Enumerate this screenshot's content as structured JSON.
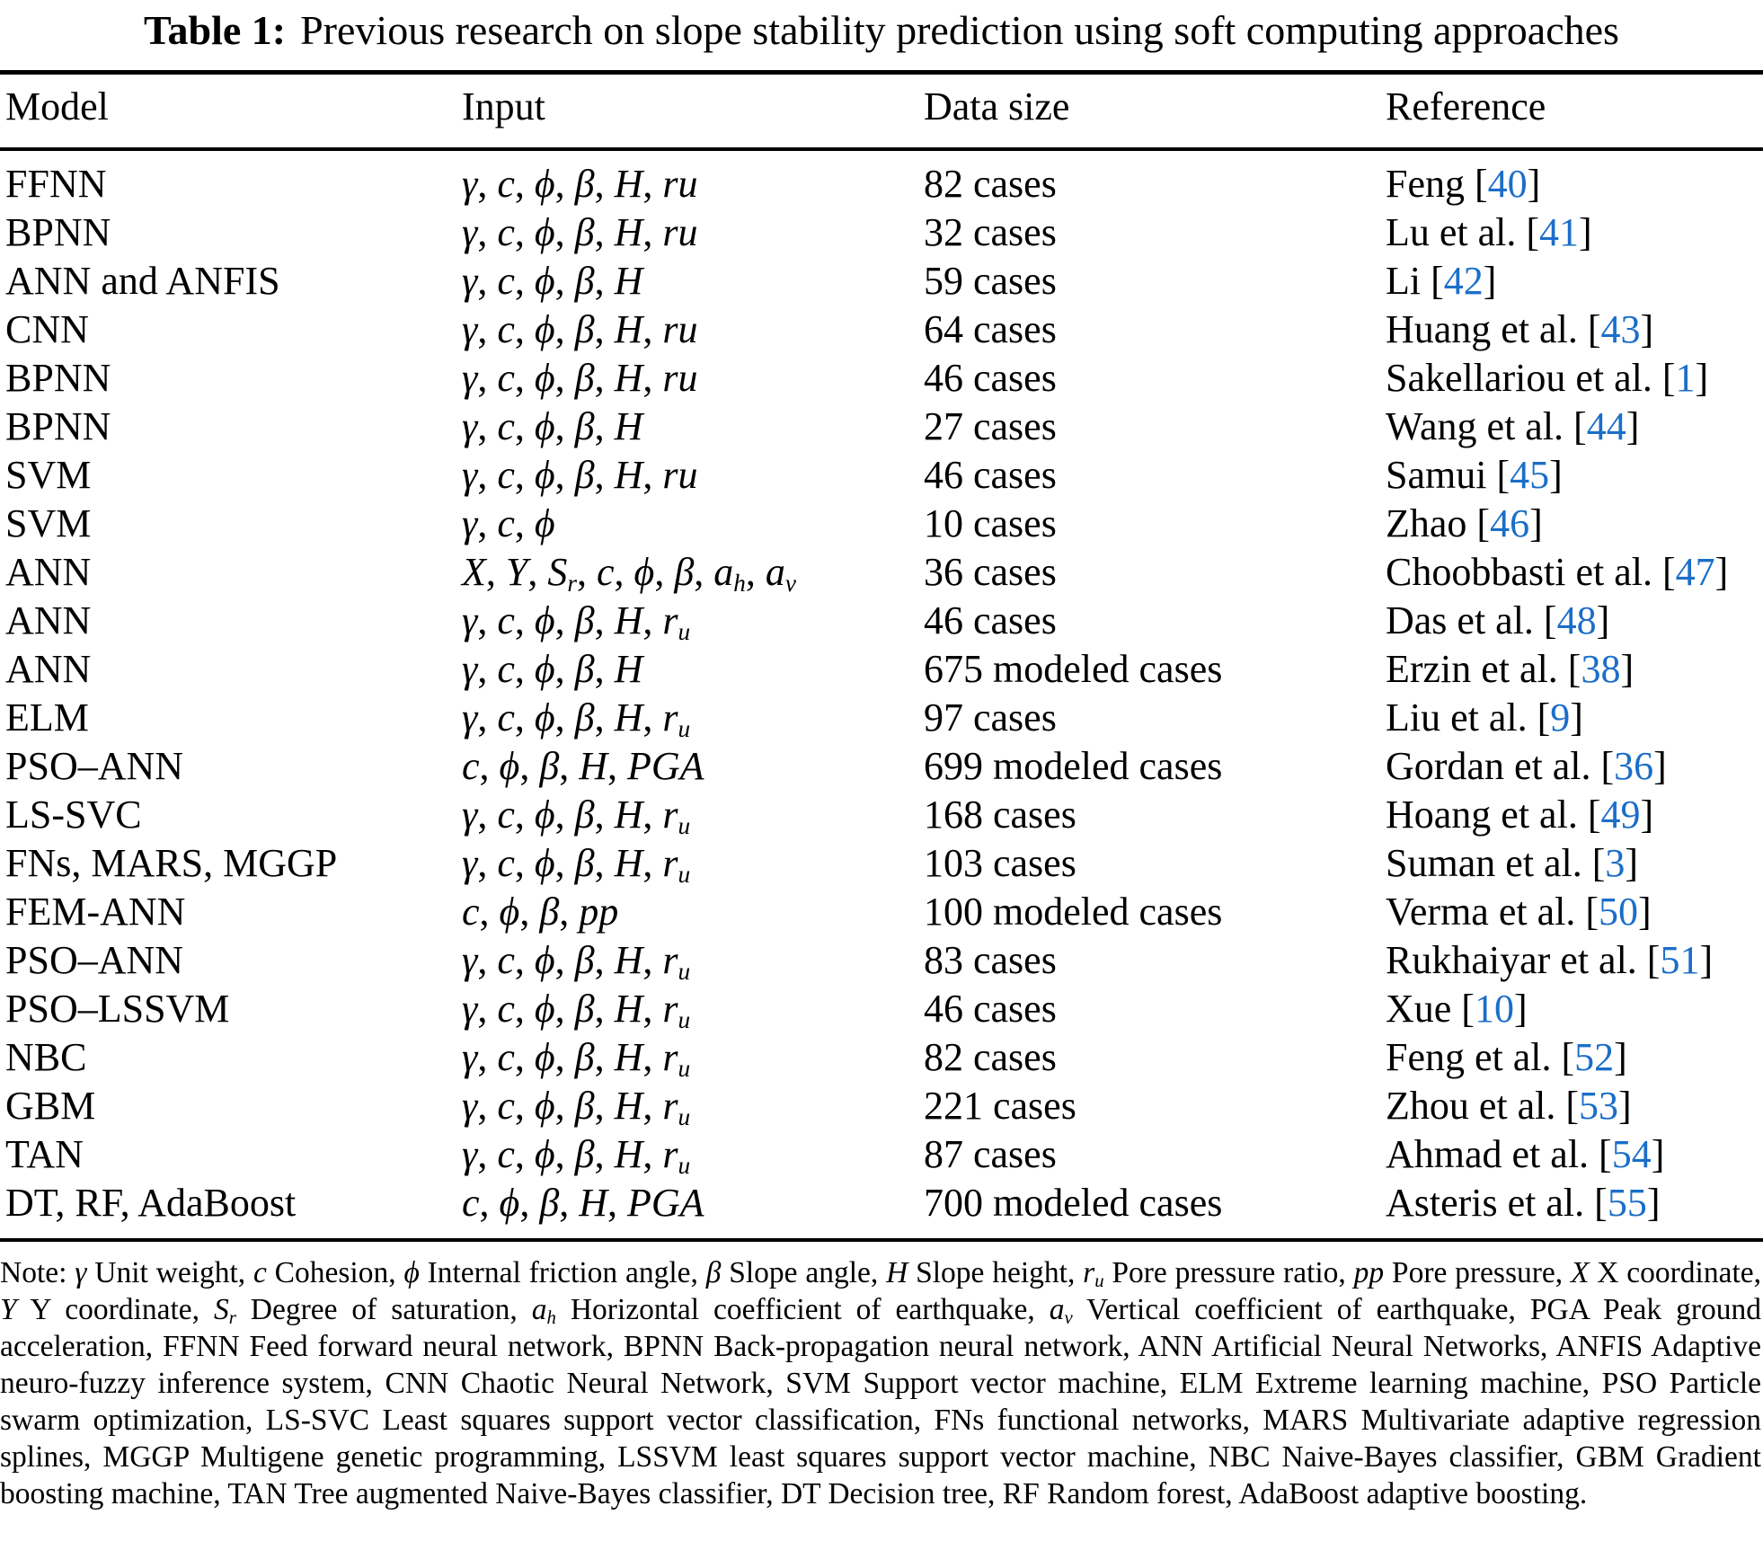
{
  "page": {
    "background": "#ffffff",
    "text_color": "#000000",
    "citation_color": "#1b6ec9"
  },
  "caption": {
    "label": "Table 1:",
    "text": "Previous research on slope stability prediction using soft computing approaches"
  },
  "table": {
    "headers": [
      "Model",
      "Input",
      "Data size",
      "Reference"
    ],
    "rows": [
      {
        "model": "FFNN",
        "input": "*γ*, *c*, *ϕ*, *β*, *H*, *ru*",
        "data_size": "82 cases",
        "ref_label": "Feng",
        "ref_num": "40"
      },
      {
        "model": "BPNN",
        "input": "*γ*, *c*, *ϕ*, *β*, *H*, *ru*",
        "data_size": "32 cases",
        "ref_label": "Lu et al.",
        "ref_num": "41"
      },
      {
        "model": "ANN and ANFIS",
        "input": "*γ*, *c*, *ϕ*, *β*, *H*",
        "data_size": "59 cases",
        "ref_label": "Li",
        "ref_num": "42"
      },
      {
        "model": "CNN",
        "input": "*γ*, *c*, *ϕ*, *β*, *H*, *ru*",
        "data_size": "64 cases",
        "ref_label": "Huang et al.",
        "ref_num": "43"
      },
      {
        "model": "BPNN",
        "input": "*γ*, *c*, *ϕ*, *β*, *H*, *ru*",
        "data_size": "46 cases",
        "ref_label": "Sakellariou et al.",
        "ref_num": "1"
      },
      {
        "model": "BPNN",
        "input": "*γ*, *c*, *ϕ*, *β*, *H*",
        "data_size": "27 cases",
        "ref_label": "Wang et al.",
        "ref_num": "44"
      },
      {
        "model": "SVM",
        "input": "*γ*, *c*, *ϕ*, *β*, *H*, *ru*",
        "data_size": "46 cases",
        "ref_label": "Samui",
        "ref_num": "45"
      },
      {
        "model": "SVM",
        "input": "*γ*, *c*, *ϕ*",
        "data_size": "10 cases",
        "ref_label": "Zhao",
        "ref_num": "46"
      },
      {
        "model": "ANN",
        "input": "*X*, *Y*, *S_{r}*, *c*, *ϕ*, *β*, *a_{h}*, *a_{v}*",
        "data_size": "36 cases",
        "ref_label": "Choobbasti et al.",
        "ref_num": "47"
      },
      {
        "model": "ANN",
        "input": "*γ*, *c*, *ϕ*, *β*, *H*, *r_{u}*",
        "data_size": "46 cases",
        "ref_label": "Das et al.",
        "ref_num": "48"
      },
      {
        "model": "ANN",
        "input": "*γ*, *c*, *ϕ*, *β*, *H*",
        "data_size": "675 modeled cases",
        "ref_label": "Erzin et al.",
        "ref_num": "38"
      },
      {
        "model": "ELM",
        "input": "*γ*, *c*, *ϕ*, *β*, *H*, *r_{u}*",
        "data_size": "97 cases",
        "ref_label": "Liu et al.",
        "ref_num": "9"
      },
      {
        "model": "PSO–ANN",
        "input": "*c*, *ϕ*, *β*, *H*, *PGA*",
        "data_size": "699 modeled cases",
        "ref_label": "Gordan et al.",
        "ref_num": "36"
      },
      {
        "model": "LS-SVC",
        "input": "*γ*, *c*, *ϕ*, *β*, *H*, *r_{u}*",
        "data_size": "168 cases",
        "ref_label": "Hoang et al.",
        "ref_num": "49"
      },
      {
        "model": "FNs, MARS, MGGP",
        "input": "*γ*, *c*, *ϕ*, *β*, *H*, *r_{u}*",
        "data_size": "103 cases",
        "ref_label": "Suman et al.",
        "ref_num": "3"
      },
      {
        "model": "FEM-ANN",
        "input": "*c*, *ϕ*, *β*, *pp*",
        "data_size": "100 modeled cases",
        "ref_label": "Verma et al.",
        "ref_num": "50"
      },
      {
        "model": "PSO–ANN",
        "input": "*γ*, *c*, *ϕ*, *β*, *H*, *r_{u}*",
        "data_size": "83 cases",
        "ref_label": "Rukhaiyar et al.",
        "ref_num": "51"
      },
      {
        "model": "PSO–LSSVM",
        "input": "*γ*, *c*, *ϕ*, *β*, *H*, *r_{u}*",
        "data_size": "46 cases",
        "ref_label": "Xue",
        "ref_num": "10"
      },
      {
        "model": "NBC",
        "input": "*γ*, *c*, *ϕ*, *β*, *H*, *r_{u}*",
        "data_size": "82 cases",
        "ref_label": "Feng et al.",
        "ref_num": "52"
      },
      {
        "model": "GBM",
        "input": "*γ*, *c*, *ϕ*, *β*, *H*, *r_{u}*",
        "data_size": "221 cases",
        "ref_label": "Zhou et al.",
        "ref_num": "53"
      },
      {
        "model": "TAN",
        "input": "*γ*, *c*, *ϕ*, *β*, *H*, *r_{u}*",
        "data_size": "87 cases",
        "ref_label": "Ahmad et al.",
        "ref_num": "54"
      },
      {
        "model": "DT, RF, AdaBoost",
        "input": "*c*, *ϕ*, *β*, *H*, *PGA*",
        "data_size": "700 modeled cases",
        "ref_label": "Asteris et al.",
        "ref_num": "55"
      }
    ]
  },
  "note": "Note: *γ* Unit weight, *c* Cohesion, *ϕ* Internal friction angle, *β* Slope angle, *H* Slope height, *r_{u}* Pore pressure ratio, *pp* Pore pressure, *X* X coordinate, *Y* Y coordinate, *S_{r}* Degree of saturation, *a_{h}* Horizontal coefficient of earthquake, *a_{v}* Vertical coefficient of earthquake, PGA Peak ground acceleration, FFNN Feed forward neural network, BPNN Back-propagation neural network, ANN Artificial Neural Networks, ANFIS Adaptive neuro-fuzzy inference system, CNN Chaotic Neural Network, SVM Support vector machine, ELM Extreme learning machine, PSO Particle swarm optimization, LS-SVC Least squares support vector classification, FNs functional networks, MARS Multivariate adaptive regression splines, MGGP Multigene genetic programming, LSSVM least squares support vector machine, NBC Naive-Bayes classifier, GBM Gradient boosting machine, TAN Tree augmented Naive-Bayes classifier, DT Decision tree, RF Random forest, AdaBoost adaptive boosting."
}
